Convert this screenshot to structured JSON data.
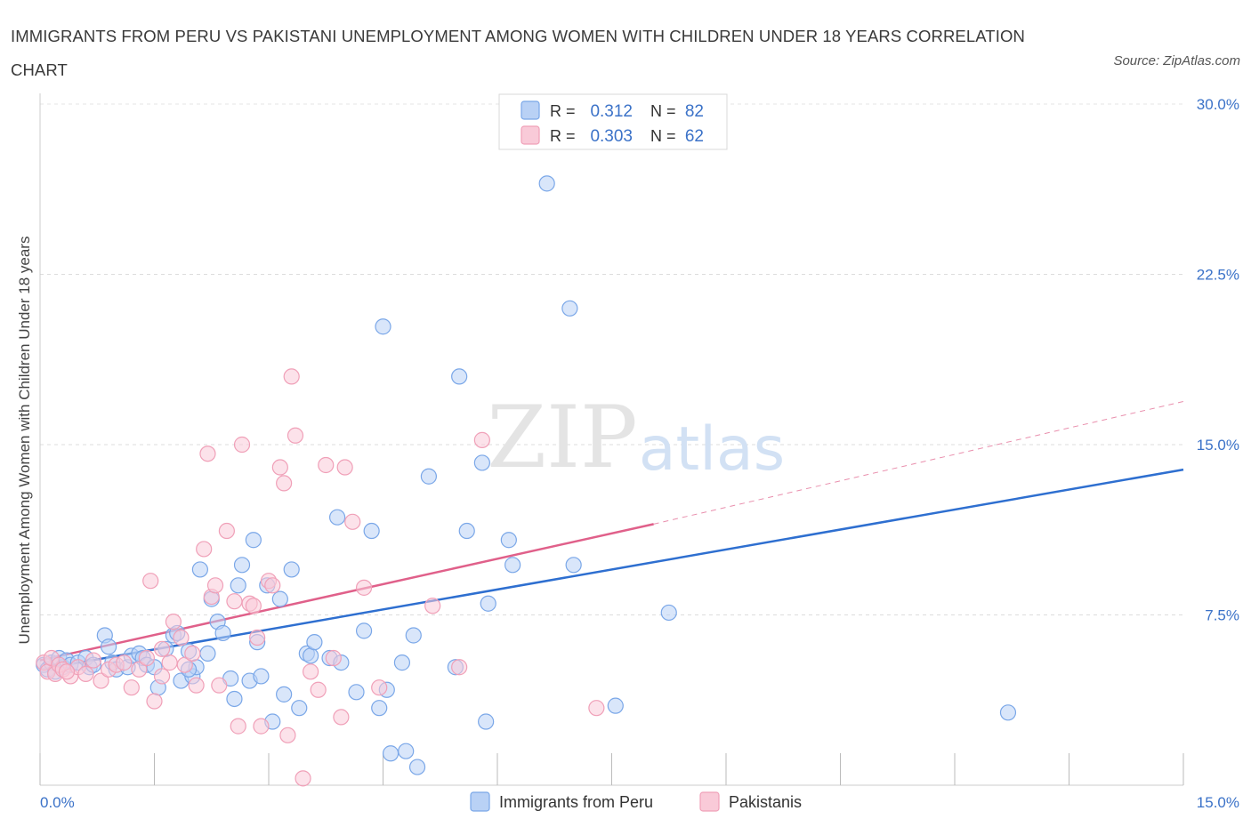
{
  "title": "IMMIGRANTS FROM PERU VS PAKISTANI UNEMPLOYMENT AMONG WOMEN WITH CHILDREN UNDER 18 YEARS CORRELATION CHART",
  "source": "Source: ZipAtlas.com",
  "watermark": {
    "zip": "ZIP",
    "atlas": "atlas"
  },
  "chart_data": {
    "type": "scatter",
    "title": "IMMIGRANTS FROM PERU VS PAKISTANI UNEMPLOYMENT AMONG WOMEN WITH CHILDREN UNDER 18 YEARS CORRELATION CHART",
    "xlabel": "",
    "ylabel": "Unemployment Among Women with Children Under 18 years",
    "xlim": [
      0,
      15
    ],
    "ylim": [
      0,
      30
    ],
    "x_tick_labels": [
      "0.0%",
      "15.0%"
    ],
    "y_ticks": [
      7.5,
      15.0,
      22.5,
      30.0
    ],
    "y_tick_labels": [
      "7.5%",
      "15.0%",
      "22.5%",
      "30.0%"
    ],
    "grid": true,
    "legend": {
      "placement": "top-center",
      "rows": [
        {
          "r_label": "R =",
          "r_value": "0.312",
          "n_label": "N =",
          "n_value": "82"
        },
        {
          "r_label": "R =",
          "r_value": "0.303",
          "n_label": "N =",
          "n_value": "62"
        }
      ]
    },
    "series": [
      {
        "name": "Immigrants from Peru",
        "color": "#7aa7e8",
        "fill": "#b9d1f5",
        "line_color": "#2e6fd0",
        "trend": {
          "x0": 0.0,
          "y0": 5.1,
          "x1": 15.0,
          "y1": 13.9
        },
        "points": [
          [
            0.05,
            5.3
          ],
          [
            0.1,
            5.1
          ],
          [
            0.15,
            5.4
          ],
          [
            0.2,
            5.0
          ],
          [
            0.25,
            5.6
          ],
          [
            0.3,
            5.2
          ],
          [
            0.35,
            5.5
          ],
          [
            0.4,
            5.3
          ],
          [
            0.5,
            5.4
          ],
          [
            0.6,
            5.6
          ],
          [
            0.65,
            5.2
          ],
          [
            0.7,
            5.3
          ],
          [
            0.85,
            6.6
          ],
          [
            0.9,
            6.1
          ],
          [
            0.95,
            5.4
          ],
          [
            1.0,
            5.1
          ],
          [
            1.15,
            5.2
          ],
          [
            1.2,
            5.7
          ],
          [
            1.3,
            5.8
          ],
          [
            1.35,
            5.6
          ],
          [
            1.4,
            5.3
          ],
          [
            1.5,
            5.2
          ],
          [
            1.55,
            4.3
          ],
          [
            1.65,
            6.0
          ],
          [
            1.75,
            6.6
          ],
          [
            1.8,
            6.7
          ],
          [
            1.85,
            4.6
          ],
          [
            1.95,
            5.9
          ],
          [
            2.0,
            4.8
          ],
          [
            2.05,
            5.2
          ],
          [
            2.1,
            9.5
          ],
          [
            2.2,
            5.8
          ],
          [
            2.25,
            8.2
          ],
          [
            2.33,
            7.2
          ],
          [
            2.4,
            6.7
          ],
          [
            2.5,
            4.7
          ],
          [
            2.55,
            3.8
          ],
          [
            2.6,
            8.8
          ],
          [
            2.65,
            9.7
          ],
          [
            2.75,
            4.6
          ],
          [
            2.8,
            10.8
          ],
          [
            2.85,
            6.3
          ],
          [
            2.9,
            4.8
          ],
          [
            2.98,
            8.8
          ],
          [
            3.05,
            2.8
          ],
          [
            3.15,
            8.2
          ],
          [
            3.2,
            4.0
          ],
          [
            3.3,
            9.5
          ],
          [
            3.4,
            3.4
          ],
          [
            3.5,
            5.8
          ],
          [
            3.55,
            5.7
          ],
          [
            3.6,
            6.3
          ],
          [
            3.8,
            5.6
          ],
          [
            3.9,
            11.8
          ],
          [
            3.95,
            5.4
          ],
          [
            4.15,
            4.1
          ],
          [
            4.25,
            6.8
          ],
          [
            4.35,
            11.2
          ],
          [
            4.45,
            3.4
          ],
          [
            4.55,
            4.2
          ],
          [
            4.6,
            1.4
          ],
          [
            4.75,
            5.4
          ],
          [
            4.8,
            1.5
          ],
          [
            4.9,
            6.6
          ],
          [
            4.95,
            0.8
          ],
          [
            5.1,
            13.6
          ],
          [
            5.45,
            5.2
          ],
          [
            5.5,
            18.0
          ],
          [
            5.6,
            11.2
          ],
          [
            5.8,
            14.2
          ],
          [
            5.85,
            2.8
          ],
          [
            5.88,
            8.0
          ],
          [
            6.15,
            10.8
          ],
          [
            6.2,
            9.7
          ],
          [
            6.65,
            26.5
          ],
          [
            6.95,
            21.0
          ],
          [
            7.0,
            9.7
          ],
          [
            7.55,
            3.5
          ],
          [
            8.25,
            7.6
          ],
          [
            12.7,
            3.2
          ],
          [
            4.5,
            20.2
          ],
          [
            1.95,
            5.1
          ]
        ]
      },
      {
        "name": "Pakistanis",
        "color": "#f0a0b8",
        "fill": "#f9cad8",
        "line_color": "#e0608a",
        "trend": {
          "x0": 0.0,
          "y0": 5.5,
          "x1": 8.05,
          "y1": 11.5
        },
        "trend_ext": {
          "x0": 8.05,
          "y0": 11.5,
          "x1": 15.0,
          "y1": 16.9
        },
        "points": [
          [
            0.05,
            5.4
          ],
          [
            0.1,
            5.0
          ],
          [
            0.15,
            5.6
          ],
          [
            0.2,
            4.9
          ],
          [
            0.25,
            5.3
          ],
          [
            0.3,
            5.1
          ],
          [
            0.4,
            4.8
          ],
          [
            0.5,
            5.2
          ],
          [
            0.6,
            4.9
          ],
          [
            0.7,
            5.5
          ],
          [
            0.8,
            4.6
          ],
          [
            0.9,
            5.1
          ],
          [
            1.0,
            5.3
          ],
          [
            1.1,
            5.4
          ],
          [
            1.2,
            4.3
          ],
          [
            1.3,
            5.1
          ],
          [
            1.4,
            5.6
          ],
          [
            1.45,
            9.0
          ],
          [
            1.5,
            3.7
          ],
          [
            1.6,
            6.0
          ],
          [
            1.7,
            5.4
          ],
          [
            1.75,
            7.2
          ],
          [
            1.85,
            6.5
          ],
          [
            1.9,
            5.3
          ],
          [
            2.0,
            5.8
          ],
          [
            2.05,
            4.4
          ],
          [
            2.15,
            10.4
          ],
          [
            2.2,
            14.6
          ],
          [
            2.25,
            8.3
          ],
          [
            2.3,
            8.8
          ],
          [
            2.35,
            4.4
          ],
          [
            2.45,
            11.2
          ],
          [
            2.55,
            8.1
          ],
          [
            2.6,
            2.6
          ],
          [
            2.65,
            15.0
          ],
          [
            2.75,
            8.0
          ],
          [
            2.85,
            6.5
          ],
          [
            2.9,
            2.6
          ],
          [
            3.0,
            9.0
          ],
          [
            3.05,
            8.8
          ],
          [
            3.15,
            14.0
          ],
          [
            3.2,
            13.3
          ],
          [
            3.25,
            2.2
          ],
          [
            3.3,
            18.0
          ],
          [
            3.35,
            15.4
          ],
          [
            3.45,
            0.3
          ],
          [
            3.55,
            5.0
          ],
          [
            3.65,
            4.2
          ],
          [
            3.75,
            14.1
          ],
          [
            3.85,
            5.6
          ],
          [
            3.95,
            3.0
          ],
          [
            4.0,
            14.0
          ],
          [
            4.1,
            11.6
          ],
          [
            4.25,
            8.7
          ],
          [
            4.45,
            4.3
          ],
          [
            5.15,
            7.9
          ],
          [
            5.5,
            5.2
          ],
          [
            5.8,
            15.2
          ],
          [
            7.3,
            3.4
          ],
          [
            1.6,
            4.8
          ],
          [
            2.8,
            7.9
          ],
          [
            0.35,
            5.0
          ]
        ]
      }
    ]
  }
}
